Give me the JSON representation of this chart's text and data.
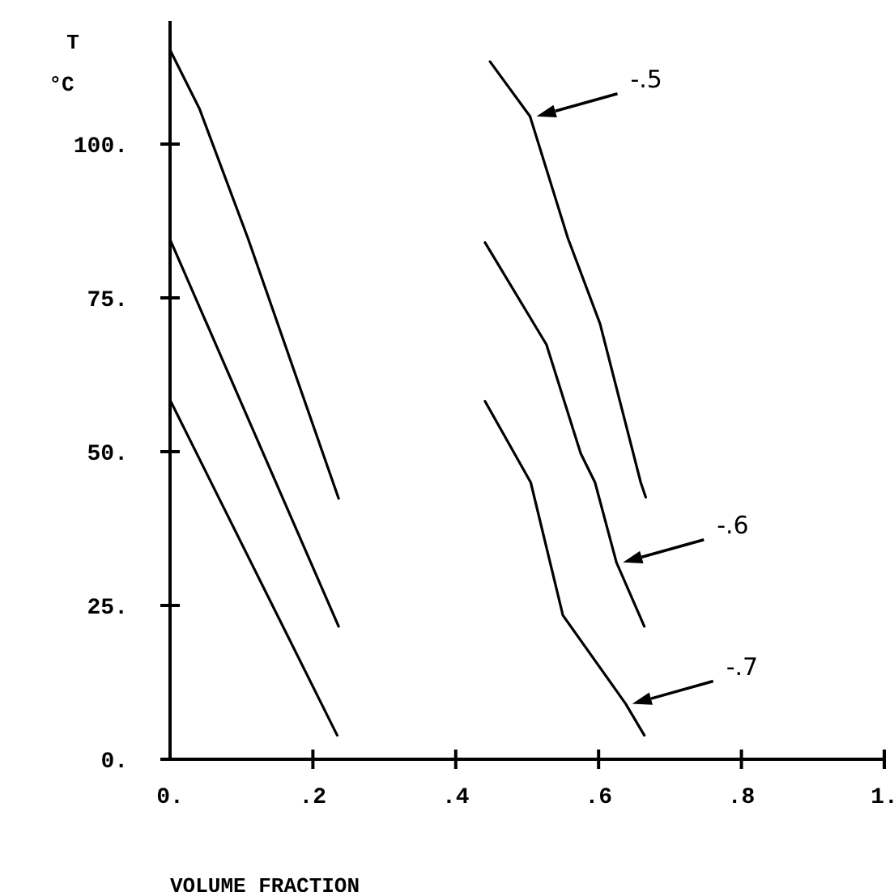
{
  "chart_data": {
    "type": "line",
    "xlabel": "VOLUME FRACTION",
    "ylabel": "T °C",
    "xlim": [
      0,
      1
    ],
    "ylim": [
      0,
      120
    ],
    "xticks": [
      {
        "value": 0,
        "label": "0."
      },
      {
        "value": 0.2,
        "label": ".2"
      },
      {
        "value": 0.4,
        "label": ".4"
      },
      {
        "value": 0.6,
        "label": ".6"
      },
      {
        "value": 0.8,
        "label": ".8"
      },
      {
        "value": 1,
        "label": "1."
      }
    ],
    "yticks": [
      {
        "value": 0,
        "label": "0."
      },
      {
        "value": 25,
        "label": "25."
      },
      {
        "value": 50,
        "label": "50."
      },
      {
        "value": 75,
        "label": "75."
      },
      {
        "value": 100,
        "label": "100."
      }
    ],
    "grid": false,
    "marker": "none",
    "line_style": "solid",
    "series": [
      {
        "color": "#000000",
        "x": [
          0,
          0.041,
          0.109,
          0.236
        ],
        "values": [
          115.3,
          105.8,
          84.7,
          42.4
        ]
      },
      {
        "color": "#000000",
        "x": [
          0,
          0.236
        ],
        "values": [
          84.5,
          21.6
        ]
      },
      {
        "color": "#000000",
        "x": [
          0,
          0.234
        ],
        "values": [
          58.4,
          3.9
        ]
      },
      {
        "name": "-.5",
        "color": "#000000",
        "x": [
          0.448,
          0.504,
          0.557,
          0.602,
          0.659,
          0.666
        ],
        "values": [
          113.4,
          104.5,
          84.7,
          70.8,
          45,
          42.6
        ]
      },
      {
        "name": "-.6",
        "color": "#000000",
        "x": [
          0.441,
          0.527,
          0.575,
          0.595,
          0.625,
          0.664
        ],
        "values": [
          84,
          67.4,
          49.7,
          45,
          32,
          21.6
        ]
      },
      {
        "name": "-.7",
        "color": "#000000",
        "x": [
          0.441,
          0.505,
          0.55,
          0.638,
          0.664
        ],
        "values": [
          58.2,
          45,
          23.4,
          9,
          3.9
        ]
      }
    ]
  }
}
